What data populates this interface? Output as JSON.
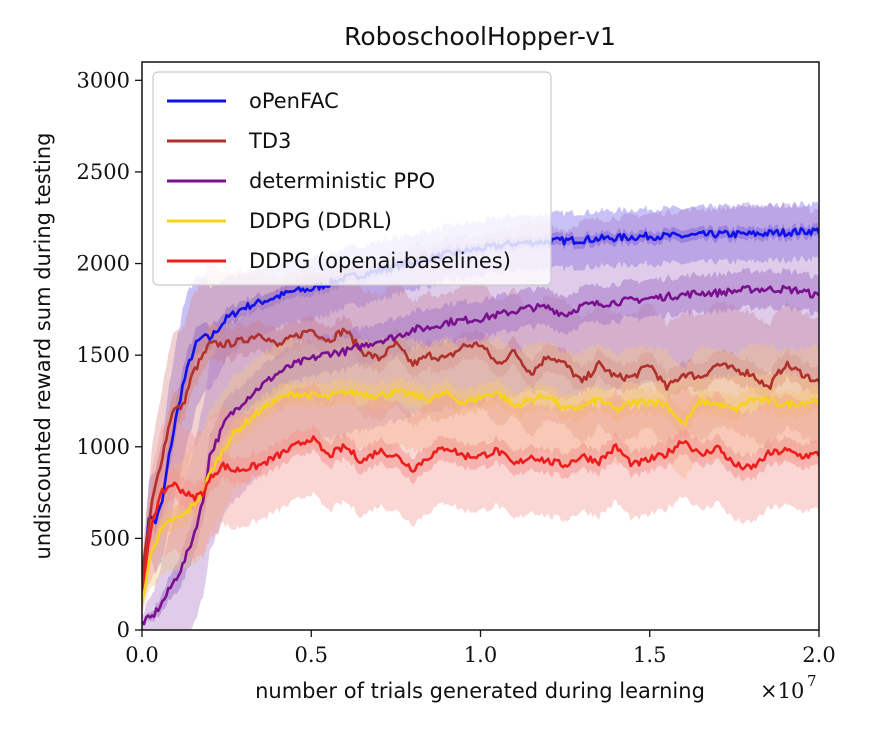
{
  "chart_data": {
    "type": "line",
    "title": "RoboschoolHopper-v1",
    "xlabel": "number of trials generated during learning",
    "ylabel": "undiscounted reward sum during testing",
    "x_multiplier_label": "×10",
    "x_multiplier_exponent": "7",
    "xlim": [
      0.0,
      2.0
    ],
    "ylim": [
      0,
      3100
    ],
    "xticks": [
      0.0,
      0.5,
      1.0,
      1.5,
      2.0
    ],
    "xtick_labels": [
      "0.0",
      "0.5",
      "1.0",
      "1.5",
      "2.0"
    ],
    "yticks": [
      0,
      500,
      1000,
      1500,
      2000,
      2500,
      3000
    ],
    "ytick_labels": [
      "0",
      "500",
      "1000",
      "1500",
      "2000",
      "2500",
      "3000"
    ],
    "legend_position": "top-left",
    "grid": false,
    "series": [
      {
        "name": "oPenFAC",
        "color": "#1010e8",
        "band_color": "#6b5ce8",
        "x": [
          0.0,
          0.02,
          0.04,
          0.06,
          0.08,
          0.1,
          0.12,
          0.14,
          0.16,
          0.18,
          0.2,
          0.25,
          0.3,
          0.35,
          0.4,
          0.45,
          0.5,
          0.6,
          0.7,
          0.8,
          0.9,
          1.0,
          1.1,
          1.2,
          1.3,
          1.4,
          1.5,
          1.6,
          1.7,
          1.8,
          1.9,
          2.0
        ],
        "y": [
          200,
          620,
          590,
          700,
          950,
          1150,
          1330,
          1460,
          1560,
          1600,
          1590,
          1700,
          1760,
          1790,
          1820,
          1850,
          1860,
          1920,
          1960,
          2010,
          2050,
          2080,
          2110,
          2120,
          2130,
          2140,
          2150,
          2150,
          2160,
          2160,
          2170,
          2180
        ],
        "spread": [
          60,
          200,
          280,
          330,
          380,
          400,
          420,
          400,
          360,
          320,
          280,
          220,
          190,
          180,
          170,
          170,
          170,
          160,
          160,
          150,
          150,
          150,
          150,
          150,
          150,
          150,
          150,
          150,
          150,
          150,
          150,
          150
        ]
      },
      {
        "name": "TD3",
        "color": "#b0302c",
        "band_color": "#d98a84",
        "x": [
          0.0,
          0.03,
          0.06,
          0.09,
          0.12,
          0.15,
          0.2,
          0.25,
          0.3,
          0.35,
          0.4,
          0.45,
          0.5,
          0.55,
          0.6,
          0.65,
          0.7,
          0.75,
          0.8,
          0.85,
          0.9,
          0.95,
          1.0,
          1.05,
          1.1,
          1.15,
          1.2,
          1.25,
          1.3,
          1.35,
          1.4,
          1.45,
          1.5,
          1.55,
          1.6,
          1.65,
          1.7,
          1.75,
          1.8,
          1.85,
          1.9,
          1.95,
          2.0
        ],
        "y": [
          300,
          700,
          950,
          1200,
          1220,
          1400,
          1560,
          1560,
          1580,
          1620,
          1550,
          1600,
          1640,
          1580,
          1640,
          1520,
          1480,
          1560,
          1450,
          1500,
          1480,
          1550,
          1560,
          1450,
          1520,
          1400,
          1500,
          1450,
          1350,
          1450,
          1380,
          1380,
          1450,
          1320,
          1400,
          1380,
          1450,
          1420,
          1400,
          1320,
          1450,
          1400,
          1350
        ],
        "spread": [
          80,
          300,
          380,
          420,
          420,
          420,
          420,
          400,
          380,
          360,
          360,
          350,
          350,
          350,
          350,
          340,
          340,
          340,
          340,
          340,
          340,
          340,
          340,
          340,
          340,
          340,
          340,
          340,
          340,
          340,
          340,
          340,
          340,
          340,
          340,
          340,
          340,
          340,
          340,
          340,
          340,
          340,
          340
        ]
      },
      {
        "name": "deterministic PPO",
        "color": "#7a1090",
        "band_color": "#a77ac8",
        "x": [
          0.0,
          0.03,
          0.06,
          0.09,
          0.12,
          0.15,
          0.18,
          0.2,
          0.25,
          0.3,
          0.35,
          0.4,
          0.45,
          0.5,
          0.55,
          0.6,
          0.65,
          0.7,
          0.75,
          0.8,
          0.85,
          0.9,
          0.95,
          1.0,
          1.05,
          1.1,
          1.15,
          1.2,
          1.25,
          1.3,
          1.35,
          1.4,
          1.45,
          1.5,
          1.55,
          1.6,
          1.65,
          1.7,
          1.75,
          1.8,
          1.85,
          1.9,
          1.95,
          2.0
        ],
        "y": [
          40,
          70,
          150,
          250,
          350,
          500,
          700,
          950,
          1150,
          1250,
          1330,
          1400,
          1450,
          1480,
          1510,
          1520,
          1550,
          1580,
          1600,
          1640,
          1650,
          1680,
          1690,
          1700,
          1720,
          1740,
          1760,
          1760,
          1720,
          1770,
          1780,
          1790,
          1800,
          1810,
          1820,
          1830,
          1840,
          1840,
          1850,
          1860,
          1860,
          1860,
          1850,
          1820
        ],
        "spread": [
          40,
          120,
          220,
          320,
          420,
          480,
          520,
          520,
          500,
          480,
          470,
          460,
          460,
          460,
          460,
          460,
          460,
          460,
          460,
          460,
          460,
          460,
          460,
          460,
          460,
          460,
          460,
          460,
          460,
          460,
          460,
          460,
          460,
          460,
          460,
          460,
          460,
          460,
          460,
          460,
          460,
          460,
          460,
          460
        ]
      },
      {
        "name": "DDPG (DDRL)",
        "color": "#f6d21a",
        "band_color": "#f3c57e",
        "x": [
          0.0,
          0.03,
          0.06,
          0.09,
          0.12,
          0.15,
          0.18,
          0.2,
          0.23,
          0.26,
          0.3,
          0.35,
          0.4,
          0.45,
          0.5,
          0.55,
          0.6,
          0.65,
          0.7,
          0.75,
          0.8,
          0.85,
          0.9,
          0.95,
          1.0,
          1.05,
          1.1,
          1.15,
          1.2,
          1.25,
          1.3,
          1.35,
          1.4,
          1.45,
          1.5,
          1.55,
          1.6,
          1.65,
          1.7,
          1.75,
          1.8,
          1.85,
          1.9,
          1.95,
          2.0
        ],
        "y": [
          150,
          450,
          550,
          600,
          620,
          680,
          750,
          850,
          950,
          1050,
          1120,
          1200,
          1260,
          1290,
          1280,
          1270,
          1300,
          1290,
          1280,
          1300,
          1280,
          1260,
          1290,
          1240,
          1270,
          1300,
          1220,
          1260,
          1280,
          1200,
          1220,
          1260,
          1200,
          1240,
          1250,
          1230,
          1120,
          1250,
          1230,
          1200,
          1260,
          1250,
          1230,
          1240,
          1260
        ],
        "spread": [
          60,
          200,
          260,
          280,
          300,
          320,
          340,
          340,
          330,
          320,
          310,
          300,
          300,
          300,
          300,
          300,
          300,
          300,
          300,
          300,
          300,
          300,
          300,
          300,
          300,
          300,
          300,
          300,
          300,
          300,
          300,
          300,
          300,
          300,
          300,
          300,
          300,
          300,
          300,
          300,
          300,
          300,
          300,
          300,
          300
        ]
      },
      {
        "name": "DDPG (openai-baselines)",
        "color": "#ee1d1d",
        "band_color": "#f39590",
        "x": [
          0.0,
          0.03,
          0.06,
          0.09,
          0.12,
          0.15,
          0.18,
          0.21,
          0.24,
          0.27,
          0.3,
          0.35,
          0.4,
          0.45,
          0.5,
          0.55,
          0.6,
          0.65,
          0.7,
          0.75,
          0.8,
          0.85,
          0.9,
          0.95,
          1.0,
          1.05,
          1.1,
          1.15,
          1.2,
          1.25,
          1.3,
          1.35,
          1.4,
          1.45,
          1.5,
          1.55,
          1.6,
          1.65,
          1.7,
          1.75,
          1.8,
          1.85,
          1.9,
          1.95,
          2.0
        ],
        "y": [
          200,
          600,
          750,
          800,
          760,
          720,
          750,
          850,
          900,
          870,
          880,
          900,
          950,
          1000,
          1050,
          950,
          1000,
          920,
          980,
          950,
          880,
          950,
          1000,
          950,
          950,
          980,
          900,
          950,
          920,
          900,
          950,
          920,
          1000,
          900,
          930,
          960,
          1040,
          950,
          1000,
          900,
          880,
          960,
          980,
          950,
          960
        ],
        "spread": [
          80,
          300,
          360,
          360,
          350,
          340,
          340,
          330,
          320,
          320,
          310,
          300,
          300,
          300,
          300,
          300,
          300,
          300,
          300,
          300,
          300,
          300,
          300,
          300,
          300,
          300,
          300,
          300,
          300,
          300,
          300,
          300,
          300,
          300,
          300,
          300,
          300,
          300,
          300,
          300,
          300,
          300,
          300,
          300,
          300
        ]
      }
    ]
  }
}
